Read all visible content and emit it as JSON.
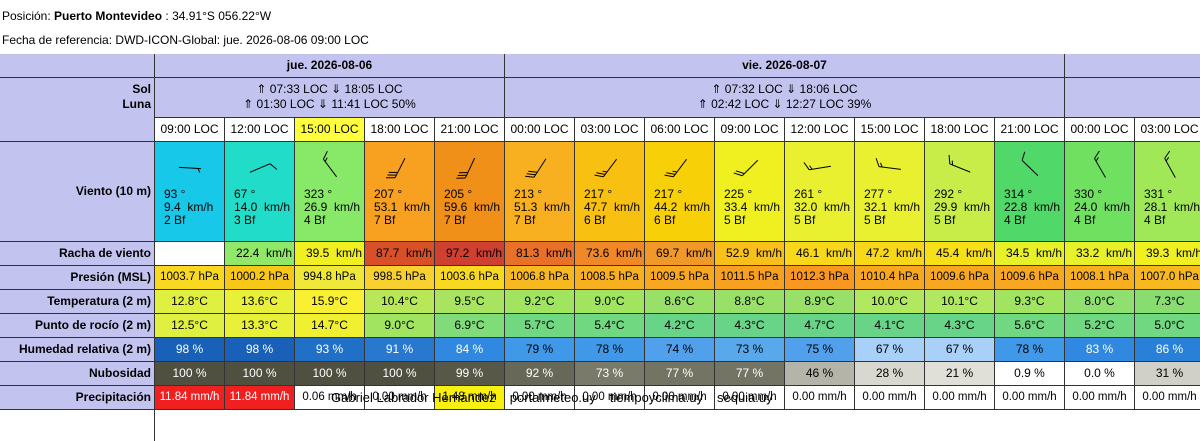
{
  "header": {
    "position_label": "Posición:",
    "position_name": "Puerto Montevideo",
    "position_coords": ": 34.91°S 056.22°W",
    "reference": "Fecha de referencia: DWD-ICON-Global: jue. 2026-08-06 09:00 LOC"
  },
  "labels": {
    "sol": "Sol",
    "luna": "Luna",
    "wind": "Viento (10 m)",
    "gust": "Racha de viento",
    "pressure": "Presión (MSL)",
    "temperature": "Temperatura (2 m)",
    "dewpoint": "Punto de rocío (2 m)",
    "humidity": "Humedad relativa (2 m)",
    "cloud": "Nubosidad",
    "precip": "Precipitación"
  },
  "days": [
    {
      "label": "jue. 2026-08-06",
      "sun": "⇑ 07:33 LOC ⇓ 18:05 LOC",
      "moon": "⇑ 01:30 LOC ⇓ 11:41 LOC  50%",
      "span": 5
    },
    {
      "label": "vie. 2026-08-07",
      "sun": "⇑ 07:32 LOC ⇓ 18:06 LOC",
      "moon": "⇑ 02:42 LOC ⇓ 12:27 LOC  39%",
      "span": 8
    },
    {
      "label": "",
      "sun": "",
      "moon": "",
      "span": 2
    }
  ],
  "hours": [
    "09:00 LOC",
    "12:00 LOC",
    "15:00 LOC",
    "18:00 LOC",
    "21:00 LOC",
    "00:00 LOC",
    "03:00 LOC",
    "06:00 LOC",
    "09:00 LOC",
    "12:00 LOC",
    "15:00 LOC",
    "18:00 LOC",
    "21:00 LOC",
    "00:00 LOC",
    "03:00 LOC"
  ],
  "current_hour_index": 2,
  "wind": [
    {
      "dir": "93 °",
      "deg": 93,
      "speed": "9.4  km/h",
      "bf": "2 Bf",
      "color": "#18c8e8"
    },
    {
      "dir": "67 °",
      "deg": 67,
      "speed": "14.0  km/h",
      "bf": "3 Bf",
      "color": "#20dcc8"
    },
    {
      "dir": "323 °",
      "deg": 323,
      "speed": "26.9  km/h",
      "bf": "4 Bf",
      "color": "#88e868"
    },
    {
      "dir": "207 °",
      "deg": 207,
      "speed": "53.1  km/h",
      "bf": "7 Bf",
      "color": "#f8a020"
    },
    {
      "dir": "205 °",
      "deg": 205,
      "speed": "59.6  km/h",
      "bf": "7 Bf",
      "color": "#f09018"
    },
    {
      "dir": "213 °",
      "deg": 213,
      "speed": "51.3  km/h",
      "bf": "7 Bf",
      "color": "#f8b020"
    },
    {
      "dir": "217 °",
      "deg": 217,
      "speed": "47.7  km/h",
      "bf": "6 Bf",
      "color": "#f8c010"
    },
    {
      "dir": "217 °",
      "deg": 217,
      "speed": "44.2  km/h",
      "bf": "6 Bf",
      "color": "#f8d008"
    },
    {
      "dir": "225 °",
      "deg": 225,
      "speed": "33.4  km/h",
      "bf": "5 Bf",
      "color": "#f0f020"
    },
    {
      "dir": "261 °",
      "deg": 261,
      "speed": "32.0  km/h",
      "bf": "5 Bf",
      "color": "#e8f030"
    },
    {
      "dir": "277 °",
      "deg": 277,
      "speed": "32.1  km/h",
      "bf": "5 Bf",
      "color": "#e8f030"
    },
    {
      "dir": "292 °",
      "deg": 292,
      "speed": "29.9  km/h",
      "bf": "5 Bf",
      "color": "#c8ec48"
    },
    {
      "dir": "314 °",
      "deg": 314,
      "speed": "22.8  km/h",
      "bf": "4 Bf",
      "color": "#50d868"
    },
    {
      "dir": "330 °",
      "deg": 330,
      "speed": "24.0  km/h",
      "bf": "4 Bf",
      "color": "#70e060"
    },
    {
      "dir": "331 °",
      "deg": 331,
      "speed": "28.1  km/h",
      "bf": "4 Bf",
      "color": "#a0e858"
    }
  ],
  "gust": [
    {
      "v": "",
      "color": "#ffffff"
    },
    {
      "v": "22.4  km/h",
      "color": "#90e868"
    },
    {
      "v": "39.5  km/h",
      "color": "#f0f020"
    },
    {
      "v": "87.7  km/h",
      "color": "#d85028"
    },
    {
      "v": "97.2  km/h",
      "color": "#d04030"
    },
    {
      "v": "81.3  km/h",
      "color": "#e87028"
    },
    {
      "v": "73.6  km/h",
      "color": "#f08828"
    },
    {
      "v": "69.7  km/h",
      "color": "#f09828"
    },
    {
      "v": "52.9  km/h",
      "color": "#f8c018"
    },
    {
      "v": "46.1  km/h",
      "color": "#f8d818"
    },
    {
      "v": "47.2  km/h",
      "color": "#f8d818"
    },
    {
      "v": "45.4  km/h",
      "color": "#f8e018"
    },
    {
      "v": "34.5  km/h",
      "color": "#e8f028"
    },
    {
      "v": "33.2  km/h",
      "color": "#e8f028"
    },
    {
      "v": "39.3  km/h",
      "color": "#f0f020"
    }
  ],
  "pressure": [
    {
      "v": "1003.7 hPa",
      "color": "#f8d820"
    },
    {
      "v": "1000.2 hPa",
      "color": "#f8c818"
    },
    {
      "v": "994.8 hPa",
      "color": "#f0e838"
    },
    {
      "v": "998.5 hPa",
      "color": "#f8d030"
    },
    {
      "v": "1003.6 hPa",
      "color": "#f8d820"
    },
    {
      "v": "1006.8 hPa",
      "color": "#f8b820"
    },
    {
      "v": "1008.5 hPa",
      "color": "#f8b020"
    },
    {
      "v": "1009.5 hPa",
      "color": "#f8a820"
    },
    {
      "v": "1011.5 hPa",
      "color": "#f8a020"
    },
    {
      "v": "1012.3 hPa",
      "color": "#f89820"
    },
    {
      "v": "1010.4 hPa",
      "color": "#f8a820"
    },
    {
      "v": "1009.6 hPa",
      "color": "#f8a820"
    },
    {
      "v": "1009.6 hPa",
      "color": "#f8a820"
    },
    {
      "v": "1008.1 hPa",
      "color": "#f8b020"
    },
    {
      "v": "1007.0 hPa",
      "color": "#f8b820"
    }
  ],
  "temperature": [
    {
      "v": "12.8°C",
      "color": "#e0f040"
    },
    {
      "v": "13.6°C",
      "color": "#e8f038"
    },
    {
      "v": "15.9°C",
      "color": "#f8f030"
    },
    {
      "v": "10.4°C",
      "color": "#b8e858"
    },
    {
      "v": "9.5°C",
      "color": "#a8e460"
    },
    {
      "v": "9.2°C",
      "color": "#a0e460"
    },
    {
      "v": "9.0°C",
      "color": "#a0e460"
    },
    {
      "v": "8.6°C",
      "color": "#98e068"
    },
    {
      "v": "8.8°C",
      "color": "#98e068"
    },
    {
      "v": "8.9°C",
      "color": "#98e068"
    },
    {
      "v": "10.0°C",
      "color": "#b0e860"
    },
    {
      "v": "10.1°C",
      "color": "#b0e860"
    },
    {
      "v": "9.3°C",
      "color": "#a0e460"
    },
    {
      "v": "8.0°C",
      "color": "#90e070"
    },
    {
      "v": "7.3°C",
      "color": "#88dc70"
    }
  ],
  "dewpoint": [
    {
      "v": "12.5°C",
      "color": "#e0f040"
    },
    {
      "v": "13.3°C",
      "color": "#e8f038"
    },
    {
      "v": "14.7°C",
      "color": "#f0f030"
    },
    {
      "v": "9.0°C",
      "color": "#a0e460"
    },
    {
      "v": "6.9°C",
      "color": "#80dc78"
    },
    {
      "v": "5.7°C",
      "color": "#70d880"
    },
    {
      "v": "5.4°C",
      "color": "#70d880"
    },
    {
      "v": "4.2°C",
      "color": "#68d488"
    },
    {
      "v": "4.3°C",
      "color": "#68d488"
    },
    {
      "v": "4.7°C",
      "color": "#68d488"
    },
    {
      "v": "4.1°C",
      "color": "#68d488"
    },
    {
      "v": "4.3°C",
      "color": "#68d488"
    },
    {
      "v": "5.6°C",
      "color": "#70d880"
    },
    {
      "v": "5.2°C",
      "color": "#70d880"
    },
    {
      "v": "5.0°C",
      "color": "#70d880"
    }
  ],
  "humidity": [
    {
      "v": "98 %",
      "color": "#1860b8",
      "text": "#ffffff"
    },
    {
      "v": "98 %",
      "color": "#1860b8",
      "text": "#ffffff"
    },
    {
      "v": "93 %",
      "color": "#2070c8",
      "text": "#ffffff"
    },
    {
      "v": "91 %",
      "color": "#2878d0",
      "text": "#ffffff"
    },
    {
      "v": "84 %",
      "color": "#3088e0",
      "text": "#ffffff"
    },
    {
      "v": "79 %",
      "color": "#4098e8",
      "text": "#000000"
    },
    {
      "v": "78 %",
      "color": "#4098e8",
      "text": "#000000"
    },
    {
      "v": "74 %",
      "color": "#50a0ec",
      "text": "#000000"
    },
    {
      "v": "73 %",
      "color": "#58a8ec",
      "text": "#000000"
    },
    {
      "v": "75 %",
      "color": "#50a0ec",
      "text": "#000000"
    },
    {
      "v": "67 %",
      "color": "#a8d0f8",
      "text": "#000000"
    },
    {
      "v": "67 %",
      "color": "#a8d0f8",
      "text": "#000000"
    },
    {
      "v": "78 %",
      "color": "#4098e8",
      "text": "#000000"
    },
    {
      "v": "83 %",
      "color": "#3088e0",
      "text": "#ffffff"
    },
    {
      "v": "86 %",
      "color": "#2880d8",
      "text": "#ffffff"
    }
  ],
  "cloud": [
    {
      "v": "100 %",
      "color": "#505040",
      "text": "#ffffff"
    },
    {
      "v": "100 %",
      "color": "#505040",
      "text": "#ffffff"
    },
    {
      "v": "100 %",
      "color": "#505040",
      "text": "#ffffff"
    },
    {
      "v": "100 %",
      "color": "#505040",
      "text": "#ffffff"
    },
    {
      "v": "99 %",
      "color": "#585848",
      "text": "#ffffff"
    },
    {
      "v": "92 %",
      "color": "#686858",
      "text": "#ffffff"
    },
    {
      "v": "73 %",
      "color": "#7a7a6a",
      "text": "#ffffff"
    },
    {
      "v": "77 %",
      "color": "#747464",
      "text": "#ffffff"
    },
    {
      "v": "77 %",
      "color": "#747464",
      "text": "#ffffff"
    },
    {
      "v": "46 %",
      "color": "#b4b4a8",
      "text": "#000000"
    },
    {
      "v": "28 %",
      "color": "#d8d8d0",
      "text": "#000000"
    },
    {
      "v": "21 %",
      "color": "#e0e0d8",
      "text": "#000000"
    },
    {
      "v": "0.9 %",
      "color": "#ffffff",
      "text": "#000000"
    },
    {
      "v": "0.0 %",
      "color": "#ffffff",
      "text": "#000000"
    },
    {
      "v": "31 %",
      "color": "#d0d0c8",
      "text": "#000000"
    }
  ],
  "precip": [
    {
      "v": "11.84 mm/h",
      "color": "#f02020",
      "text": "#ffffff"
    },
    {
      "v": "11.84 mm/h",
      "color": "#f02020",
      "text": "#ffffff"
    },
    {
      "v": "0.06 mm/h",
      "color": "#ffffff",
      "text": "#000000"
    },
    {
      "v": "0.00 mm/h",
      "color": "#ffffff",
      "text": "#000000"
    },
    {
      "v": "1.48 mm/h",
      "color": "#f8f010",
      "text": "#000000"
    },
    {
      "v": "0.00 mm/h",
      "color": "#ffffff",
      "text": "#000000"
    },
    {
      "v": "0.00 mm/h",
      "color": "#ffffff",
      "text": "#000000"
    },
    {
      "v": "0.00 mm/h",
      "color": "#ffffff",
      "text": "#000000"
    },
    {
      "v": "0.00 mm/h",
      "color": "#ffffff",
      "text": "#000000"
    },
    {
      "v": "0.00 mm/h",
      "color": "#ffffff",
      "text": "#000000"
    },
    {
      "v": "0.00 mm/h",
      "color": "#ffffff",
      "text": "#000000"
    },
    {
      "v": "0.00 mm/h",
      "color": "#ffffff",
      "text": "#000000"
    },
    {
      "v": "0.00 mm/h",
      "color": "#ffffff",
      "text": "#000000"
    },
    {
      "v": "0.00 mm/h",
      "color": "#ffffff",
      "text": "#000000"
    },
    {
      "v": "0.00 mm/h",
      "color": "#ffffff",
      "text": "#000000"
    }
  ],
  "credits": {
    "author": "Gabriel Labrador Hernández",
    "site1": "portalmeteo.uy",
    "site2": "tiempoyclima.uy",
    "site3": "sequia.uy"
  },
  "colors": {
    "label_bg": "#c3c3f0",
    "current_hour": "#ffff40",
    "border": "#333333"
  }
}
